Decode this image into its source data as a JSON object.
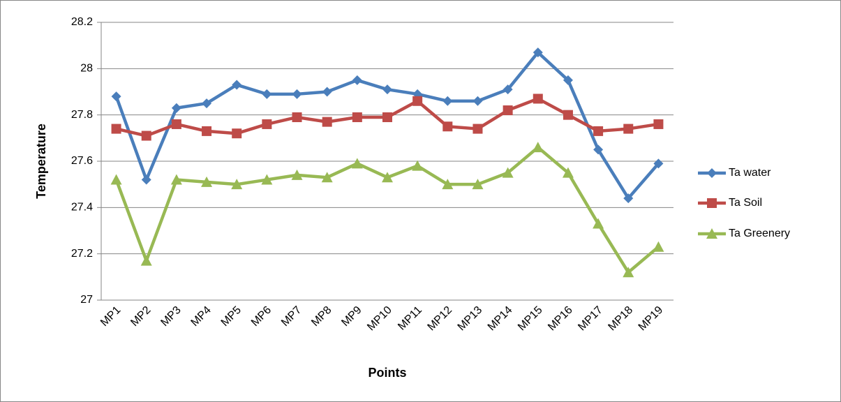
{
  "chart_data": {
    "type": "line",
    "x_label": "Points",
    "y_label": "Temperature",
    "categories": [
      "MP1",
      "MP2",
      "MP3",
      "MP4",
      "MP5",
      "MP6",
      "MP7",
      "MP8",
      "MP9",
      "MP10",
      "MP11",
      "MP12",
      "MP13",
      "MP14",
      "MP15",
      "MP16",
      "MP17",
      "MP18",
      "MP19"
    ],
    "series": [
      {
        "name": "Ta water",
        "color": "#4a7ebb",
        "marker": "diamond",
        "values": [
          27.88,
          27.52,
          27.83,
          27.85,
          27.93,
          27.89,
          27.89,
          27.9,
          27.95,
          27.91,
          27.89,
          27.86,
          27.86,
          27.91,
          28.07,
          27.95,
          27.65,
          27.44,
          27.59
        ]
      },
      {
        "name": "Ta Soil",
        "color": "#be4b48",
        "marker": "square",
        "values": [
          27.74,
          27.71,
          27.76,
          27.73,
          27.72,
          27.76,
          27.79,
          27.77,
          27.79,
          27.79,
          27.86,
          27.75,
          27.74,
          27.82,
          27.87,
          27.8,
          27.73,
          27.74,
          27.76
        ]
      },
      {
        "name": "Ta Greenery",
        "color": "#98b954",
        "marker": "triangle",
        "values": [
          27.52,
          27.17,
          27.52,
          27.51,
          27.5,
          27.52,
          27.54,
          27.53,
          27.59,
          27.53,
          27.58,
          27.5,
          27.5,
          27.55,
          27.66,
          27.55,
          27.33,
          27.12,
          27.23
        ]
      }
    ],
    "ylim": [
      27,
      28.2
    ],
    "yticks": [
      27,
      27.2,
      27.4,
      27.6,
      27.8,
      28,
      28.2
    ],
    "grid": true,
    "legend": "right"
  }
}
